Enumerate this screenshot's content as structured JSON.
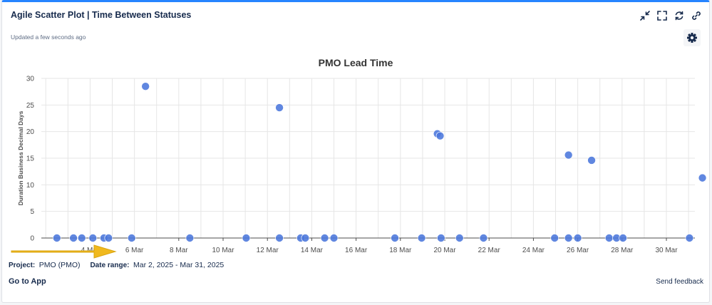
{
  "header": {
    "title": "Agile Scatter Plot | Time Between Statuses",
    "updated": "Updated a few seconds ago",
    "icons": [
      "minimize-icon",
      "fullscreen-icon",
      "refresh-icon",
      "link-icon",
      "settings-gear-icon"
    ]
  },
  "colors": {
    "accent": "#2684ff",
    "point": "#4a76dc",
    "text": "#172b4d",
    "arrow": "#f0b91e"
  },
  "chart_data": {
    "type": "scatter",
    "title": "PMO Lead Time",
    "ylabel": "Duration Business Decimal Days",
    "xlabel": "",
    "ylim": [
      0,
      30
    ],
    "yticks": [
      0,
      5,
      10,
      15,
      20,
      25,
      30
    ],
    "xlim": [
      "2025-03-01",
      "2025-03-31"
    ],
    "xticks": [
      "4 Mar",
      "6 Mar",
      "8 Mar",
      "10 Mar",
      "12 Mar",
      "14 Mar",
      "16 Mar",
      "18 Mar",
      "20 Mar",
      "22 Mar",
      "24 Mar",
      "26 Mar",
      "28 Mar",
      "30 Mar"
    ],
    "grid": true,
    "legend": "none",
    "points": [
      {
        "x": "2025-03-02 12:00",
        "y": 0
      },
      {
        "x": "2025-03-03 06:00",
        "y": 0
      },
      {
        "x": "2025-03-03 15:00",
        "y": 0
      },
      {
        "x": "2025-03-04 03:00",
        "y": 0
      },
      {
        "x": "2025-03-04 15:00",
        "y": 0
      },
      {
        "x": "2025-03-04 20:00",
        "y": 0
      },
      {
        "x": "2025-03-05 21:00",
        "y": 0
      },
      {
        "x": "2025-03-06 12:00",
        "y": 28.5
      },
      {
        "x": "2025-03-08 12:00",
        "y": 0
      },
      {
        "x": "2025-03-11 01:00",
        "y": 0
      },
      {
        "x": "2025-03-12 13:00",
        "y": 24.5
      },
      {
        "x": "2025-03-12 13:00",
        "y": 0
      },
      {
        "x": "2025-03-13 12:00",
        "y": 0
      },
      {
        "x": "2025-03-13 17:00",
        "y": 0
      },
      {
        "x": "2025-03-14 14:00",
        "y": 0
      },
      {
        "x": "2025-03-15 00:00",
        "y": 0
      },
      {
        "x": "2025-03-17 18:00",
        "y": 0
      },
      {
        "x": "2025-03-18 23:00",
        "y": 0
      },
      {
        "x": "2025-03-19 16:00",
        "y": 19.6
      },
      {
        "x": "2025-03-19 19:00",
        "y": 19.2
      },
      {
        "x": "2025-03-19 20:00",
        "y": 0
      },
      {
        "x": "2025-03-20 16:00",
        "y": 0
      },
      {
        "x": "2025-03-21 18:00",
        "y": 0
      },
      {
        "x": "2025-03-24 23:00",
        "y": 0
      },
      {
        "x": "2025-03-25 14:00",
        "y": 15.6
      },
      {
        "x": "2025-03-25 14:00",
        "y": 0
      },
      {
        "x": "2025-03-26 00:00",
        "y": 0
      },
      {
        "x": "2025-03-26 15:00",
        "y": 14.6
      },
      {
        "x": "2025-03-27 10:00",
        "y": 0
      },
      {
        "x": "2025-03-27 18:00",
        "y": 0
      },
      {
        "x": "2025-03-28 01:00",
        "y": 0
      },
      {
        "x": "2025-03-31 01:00",
        "y": 0
      },
      {
        "x": "2025-03-31 15:00",
        "y": 11.3
      }
    ]
  },
  "footer": {
    "project_label": "Project:",
    "project_value": "PMO (PMO)",
    "date_label": "Date range:",
    "date_value": "Mar 2, 2025 - Mar 31, 2025",
    "go_to_app": "Go to App",
    "send_feedback": "Send feedback"
  }
}
